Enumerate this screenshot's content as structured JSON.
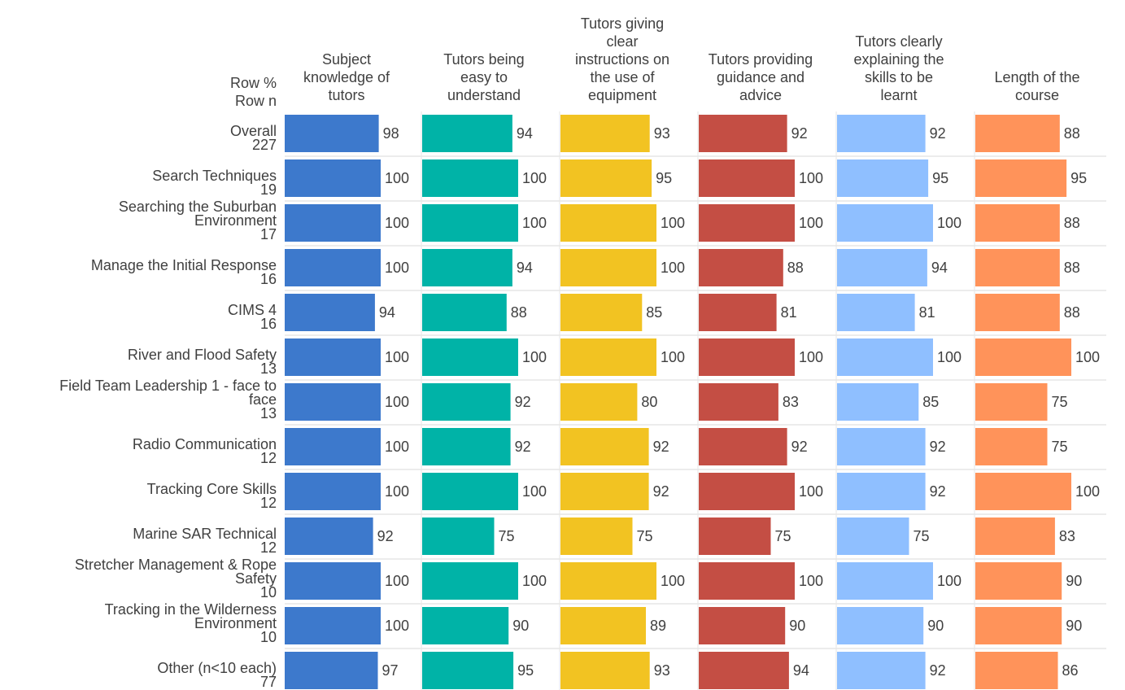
{
  "chart_data": {
    "type": "bar",
    "orientation": "horizontal",
    "row_header": "Row %\nRow n",
    "x_range": [
      0,
      100
    ],
    "grid": false,
    "legend": "none",
    "columns": [
      {
        "name": "Subject\nknowledge of\ntutors",
        "color": "#3d79cc"
      },
      {
        "name": "Tutors being\neasy to\nunderstand",
        "color": "#00b3a7"
      },
      {
        "name": "Tutors giving\nclear\ninstructions on\nthe use of\nequipment",
        "color": "#f2c322"
      },
      {
        "name": "Tutors providing\nguidance and\nadvice",
        "color": "#c44e44"
      },
      {
        "name": "Tutors clearly\nexplaining the\nskills to be\nlearnt",
        "color": "#8fbfff"
      },
      {
        "name": "Length of the\ncourse",
        "color": "#ff935a"
      }
    ],
    "rows": [
      {
        "label": "Overall",
        "n": "227",
        "values": [
          98,
          94,
          93,
          92,
          92,
          88
        ]
      },
      {
        "label": "Search Techniques",
        "n": "19",
        "values": [
          100,
          100,
          95,
          100,
          95,
          95
        ]
      },
      {
        "label": "Searching the Suburban\nEnvironment",
        "n": "17",
        "values": [
          100,
          100,
          100,
          100,
          100,
          88
        ]
      },
      {
        "label": "Manage the Initial Response",
        "n": "16",
        "values": [
          100,
          94,
          100,
          88,
          94,
          88
        ]
      },
      {
        "label": "CIMS 4",
        "n": "16",
        "values": [
          94,
          88,
          85,
          81,
          81,
          88
        ]
      },
      {
        "label": "River and Flood Safety",
        "n": "13",
        "values": [
          100,
          100,
          100,
          100,
          100,
          100
        ]
      },
      {
        "label": "Field Team Leadership 1 - face to\nface",
        "n": "13",
        "values": [
          100,
          92,
          80,
          83,
          85,
          75
        ]
      },
      {
        "label": "Radio Communication",
        "n": "12",
        "values": [
          100,
          92,
          92,
          92,
          92,
          75
        ]
      },
      {
        "label": "Tracking Core Skills",
        "n": "12",
        "values": [
          100,
          100,
          92,
          100,
          92,
          100
        ]
      },
      {
        "label": "Marine SAR Technical",
        "n": "12",
        "values": [
          92,
          75,
          75,
          75,
          75,
          83
        ]
      },
      {
        "label": "Stretcher Management & Rope\nSafety",
        "n": "10",
        "values": [
          100,
          100,
          100,
          100,
          100,
          90
        ]
      },
      {
        "label": "Tracking in the Wilderness\nEnvironment",
        "n": "10",
        "values": [
          100,
          90,
          89,
          90,
          90,
          90
        ]
      },
      {
        "label": "Other (n<10 each)",
        "n": "77",
        "values": [
          97,
          95,
          93,
          94,
          92,
          86
        ]
      }
    ]
  }
}
